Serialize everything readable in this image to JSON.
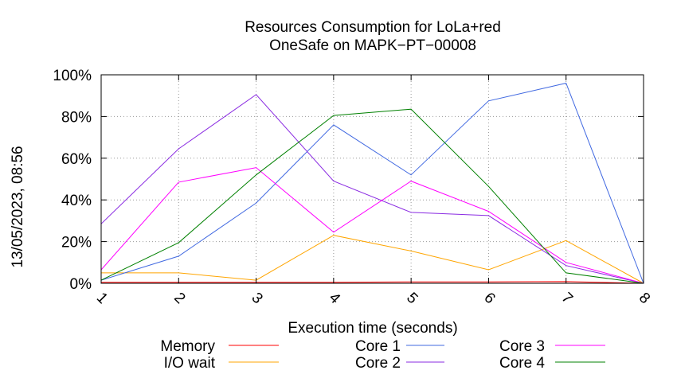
{
  "chart_data": {
    "type": "line",
    "title": [
      "Resources Consumption for LoLa+red",
      "OneSafe on MAPK−PT−00008"
    ],
    "xlabel": "Execution time (seconds)",
    "side_label": "13/05/2023, 08:56",
    "x": [
      1,
      2,
      3,
      4,
      5,
      6,
      7,
      8
    ],
    "xlim": [
      1,
      8
    ],
    "ylim": [
      0,
      100
    ],
    "y_ticks": [
      0,
      20,
      40,
      60,
      80,
      100
    ],
    "y_tick_labels": [
      "0%",
      "20%",
      "40%",
      "60%",
      "80%",
      "100%"
    ],
    "x_tick_labels": [
      "1",
      "2",
      "3",
      "4",
      "5",
      "6",
      "7",
      "8"
    ],
    "grid": true,
    "legend_position": "bottom",
    "series": [
      {
        "name": "Memory",
        "color": "#ff0000",
        "values": [
          0.5,
          0.5,
          0.5,
          0.5,
          0.7,
          0.7,
          0.8,
          0
        ]
      },
      {
        "name": "I/O wait",
        "color": "#ffa500",
        "values": [
          5,
          5,
          1.5,
          23,
          15.5,
          6.5,
          20.5,
          0
        ]
      },
      {
        "name": "Core 1",
        "color": "#4169e1",
        "values": [
          1.5,
          13,
          38.5,
          76,
          52,
          87.5,
          96,
          0
        ]
      },
      {
        "name": "Core 2",
        "color": "#8a2be2",
        "values": [
          28.5,
          64.5,
          90.5,
          49,
          34,
          32.5,
          8.5,
          0
        ]
      },
      {
        "name": "Core 3",
        "color": "#ff00ff",
        "values": [
          6.5,
          48.5,
          55.5,
          24.5,
          49,
          34.5,
          10,
          0
        ]
      },
      {
        "name": "Core 4",
        "color": "#008000",
        "values": [
          1.5,
          19.5,
          52,
          80.5,
          83.5,
          46.5,
          5,
          0
        ]
      }
    ]
  }
}
